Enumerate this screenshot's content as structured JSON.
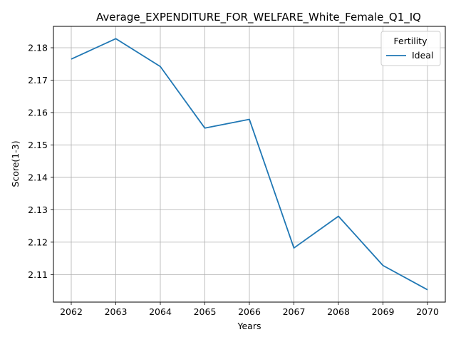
{
  "chart_data": {
    "type": "line",
    "title": "Average_EXPENDITURE_FOR_WELFARE_White_Female_Q1_IQ",
    "xlabel": "Years",
    "ylabel": "Score(1-3)",
    "x": [
      2062,
      2063,
      2064,
      2065,
      2066,
      2067,
      2068,
      2069,
      2070
    ],
    "series": [
      {
        "name": "Ideal",
        "color": "#1f77b4",
        "values": [
          2.1765,
          2.1828,
          2.1742,
          2.1552,
          2.1579,
          2.1182,
          2.128,
          2.1128,
          2.1053
        ]
      }
    ],
    "xlim": [
      2061.6,
      2070.4
    ],
    "ylim": [
      2.1015,
      2.1866
    ],
    "xticks": [
      "2062",
      "2063",
      "2064",
      "2065",
      "2066",
      "2067",
      "2068",
      "2069",
      "2070"
    ],
    "yticks": [
      "2.11",
      "2.12",
      "2.13",
      "2.14",
      "2.15",
      "2.16",
      "2.17",
      "2.18"
    ],
    "grid": true,
    "legend": {
      "title": "Fertility",
      "placement": "top-right"
    }
  }
}
